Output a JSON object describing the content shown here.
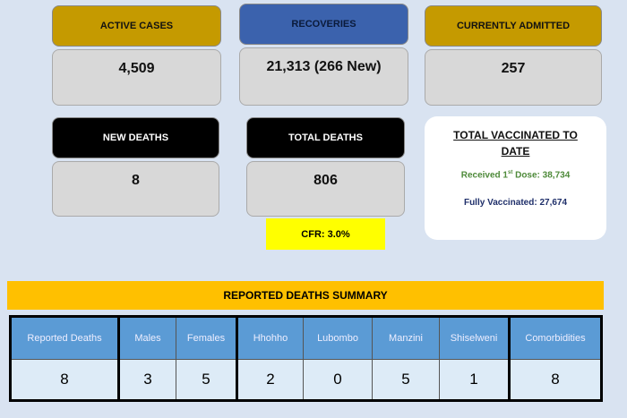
{
  "cards": {
    "active_cases": {
      "label": "ACTIVE CASES",
      "value": "4,509"
    },
    "recoveries": {
      "label": "RECOVERIES",
      "value": "21,313 (266 New)"
    },
    "currently_admitted": {
      "label": "CURRENTLY ADMITTED",
      "value": "257"
    },
    "new_deaths": {
      "label": "NEW DEATHS",
      "value": "8"
    },
    "total_deaths": {
      "label": "TOTAL DEATHS",
      "value": "806"
    }
  },
  "cfr": "CFR: 3.0%",
  "vaccinated": {
    "title": "TOTAL VACCINATED TO DATE",
    "first_dose_prefix": "Received 1",
    "first_dose_sup": "st",
    "first_dose_rest": " Dose: 38,734",
    "fully": "Fully Vaccinated: 27,674"
  },
  "summary": {
    "title": "REPORTED DEATHS SUMMARY",
    "headers": [
      "Reported Deaths",
      "Males",
      "Females",
      "Hhohho",
      "Lubombo",
      "Manzini",
      "Shiselweni",
      "Comorbidities"
    ],
    "values": [
      "8",
      "3",
      "5",
      "2",
      "0",
      "5",
      "1",
      "8"
    ]
  },
  "colors": {
    "gold": "#c59a00",
    "blue": "#3b62ad",
    "yellow": "#ffc000",
    "table_header": "#5b9bd5",
    "table_cell": "#ddebf7"
  }
}
